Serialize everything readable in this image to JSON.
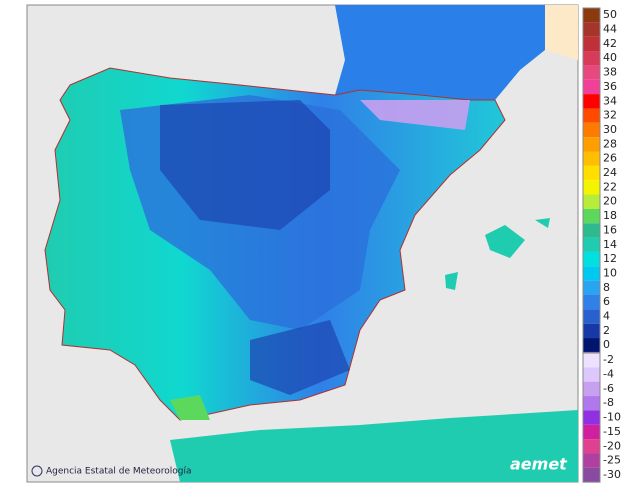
{
  "credit": "Agencia Estatal de Meteorología",
  "logo": "aemet",
  "legend": {
    "upper": [
      {
        "label": 50,
        "color": "#8b3a0f"
      },
      {
        "label": 44,
        "color": "#a5342a"
      },
      {
        "label": 42,
        "color": "#c03038"
      },
      {
        "label": 40,
        "color": "#d83a5a"
      },
      {
        "label": 38,
        "color": "#e84880"
      },
      {
        "label": 36,
        "color": "#f0409a"
      },
      {
        "label": 34,
        "color": "#ff0000"
      },
      {
        "label": 32,
        "color": "#ff4a00"
      },
      {
        "label": 30,
        "color": "#ff7a00"
      },
      {
        "label": 28,
        "color": "#ff9e00"
      },
      {
        "label": 26,
        "color": "#ffbe00"
      },
      {
        "label": 24,
        "color": "#ffde00"
      },
      {
        "label": 22,
        "color": "#f4f400"
      },
      {
        "label": 20,
        "color": "#b8ec3a"
      },
      {
        "label": 18,
        "color": "#5cd85c"
      },
      {
        "label": 16,
        "color": "#2eba8e"
      },
      {
        "label": 14,
        "color": "#20ccb0"
      },
      {
        "label": 12,
        "color": "#00e0e0"
      },
      {
        "label": 10,
        "color": "#00c8f0"
      },
      {
        "label": 8,
        "color": "#2aa4f0"
      },
      {
        "label": 6,
        "color": "#3080e8"
      },
      {
        "label": 4,
        "color": "#2860d0"
      },
      {
        "label": 2,
        "color": "#1838a8"
      },
      {
        "label": 0,
        "color": "#001470"
      }
    ],
    "lower": [
      {
        "label": -2,
        "color": "#eee0ff"
      },
      {
        "label": -4,
        "color": "#dcc8fc"
      },
      {
        "label": -6,
        "color": "#c8a0f0"
      },
      {
        "label": -8,
        "color": "#b078ec"
      },
      {
        "label": -10,
        "color": "#9030e0"
      },
      {
        "label": -15,
        "color": "#d020a0"
      },
      {
        "label": -20,
        "color": "#e04090"
      },
      {
        "label": -25,
        "color": "#b040a0"
      },
      {
        "label": -30,
        "color": "#8a4aa0"
      }
    ]
  }
}
